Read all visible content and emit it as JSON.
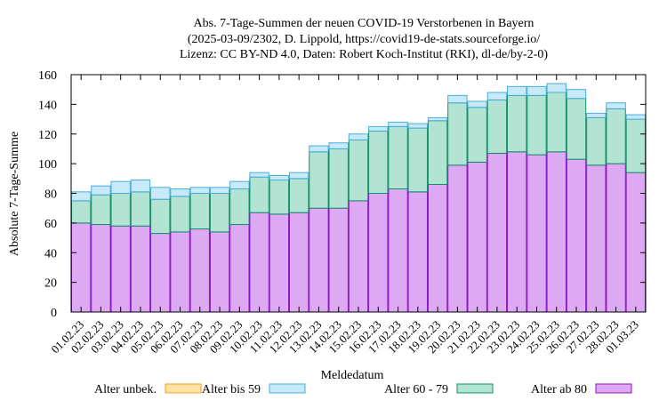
{
  "chart_data": {
    "type": "bar",
    "stacked": true,
    "title_lines": [
      "Abs. 7-Tage-Summen der neuen COVID-19 Verstorbenen in Bayern",
      "(2025-03-09/2302, D. Lippold, https://covid19-de-stats.sourceforge.io/",
      "Lizenz: CC BY-ND 4.0, Daten: Robert Koch-Institut (RKI), dl-de/by-2-0)"
    ],
    "xlabel": "Meldedatum",
    "ylabel": "Absolute 7-Tage-Summe",
    "ylim": [
      0,
      160
    ],
    "yticks": [
      0,
      20,
      40,
      60,
      80,
      100,
      120,
      140,
      160
    ],
    "categories": [
      "01.02.23",
      "02.02.23",
      "03.02.23",
      "04.02.23",
      "05.02.23",
      "06.02.23",
      "07.02.23",
      "08.02.23",
      "09.02.23",
      "10.02.23",
      "11.02.23",
      "12.02.23",
      "13.02.23",
      "14.02.23",
      "15.02.23",
      "16.02.23",
      "17.02.23",
      "18.02.23",
      "19.02.23",
      "20.02.23",
      "21.02.23",
      "22.02.23",
      "23.02.23",
      "24.02.23",
      "25.02.23",
      "26.02.23",
      "27.02.23",
      "28.02.23",
      "01.03.23"
    ],
    "series": [
      {
        "name": "Alter ab 80",
        "color": "#dda9f2",
        "edge": "#8a14c8",
        "values": [
          60,
          59,
          58,
          58,
          53,
          54,
          56,
          54,
          59,
          67,
          66,
          67,
          70,
          70,
          75,
          80,
          83,
          81,
          86,
          99,
          101,
          107,
          108,
          106,
          108,
          103,
          99,
          100,
          94
        ]
      },
      {
        "name": "Alter 60 - 79",
        "color": "#b3e3d2",
        "edge": "#11906a",
        "values": [
          15,
          20,
          22,
          23,
          23,
          24,
          24,
          26,
          24,
          24,
          23,
          23,
          38,
          40,
          41,
          42,
          42,
          43,
          43,
          42,
          37,
          36,
          38,
          40,
          40,
          41,
          32,
          37,
          36
        ]
      },
      {
        "name": "Alter bis 59",
        "color": "#c8e9f7",
        "edge": "#46aede",
        "values": [
          6,
          6,
          8,
          8,
          8,
          5,
          4,
          4,
          5,
          3,
          3,
          4,
          4,
          4,
          4,
          3,
          3,
          3,
          2,
          5,
          4,
          5,
          6,
          6,
          6,
          6,
          3,
          4,
          3
        ]
      },
      {
        "name": "Alter unbek.",
        "color": "#fde2a8",
        "edge": "#f0a020",
        "values": [
          0,
          0,
          0,
          0,
          0,
          0,
          0,
          0,
          0,
          0,
          0,
          0,
          0,
          0,
          0,
          0,
          0,
          0,
          0,
          0,
          0,
          0,
          0,
          0,
          0,
          0,
          0,
          0,
          0
        ]
      }
    ],
    "legend": [
      {
        "name": "Alter unbek.",
        "color": "#fde2a8",
        "edge": "#f0a020"
      },
      {
        "name": "Alter bis 59",
        "color": "#c8e9f7",
        "edge": "#46aede"
      },
      {
        "name": "Alter 60 - 79",
        "color": "#b3e3d2",
        "edge": "#11906a"
      },
      {
        "name": "Alter ab 80",
        "color": "#dda9f2",
        "edge": "#8a14c8"
      }
    ],
    "legend_position": "bottom"
  }
}
